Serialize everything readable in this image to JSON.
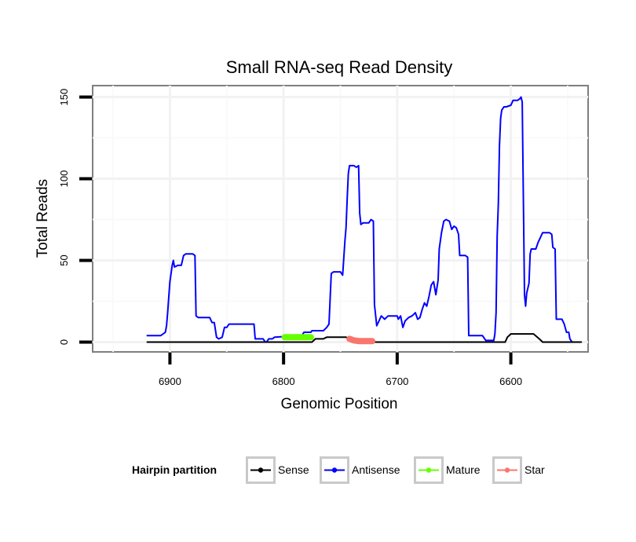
{
  "chart_data": {
    "type": "line",
    "title": "Small RNA-seq Read Density",
    "xlabel": "Genomic Position",
    "ylabel": "Total Reads",
    "xlim": [
      6532,
      6968
    ],
    "x_reversed": true,
    "ylim": [
      -6,
      157
    ],
    "x_ticks": [
      6900,
      6800,
      6700,
      6600
    ],
    "y_ticks": [
      0,
      50,
      100,
      150
    ],
    "grid": true,
    "legend": {
      "title": "Hairpin partition",
      "position": "bottom",
      "entries": [
        "Sense",
        "Antisense",
        "Mature",
        "Star"
      ]
    },
    "series": [
      {
        "name": "Antisense",
        "color": "#0000FF",
        "width": 2,
        "points": [
          [
            6920,
            4
          ],
          [
            6908,
            4
          ],
          [
            6904,
            6
          ],
          [
            6903,
            10
          ],
          [
            6902,
            18
          ],
          [
            6901,
            28
          ],
          [
            6900,
            37
          ],
          [
            6898,
            47
          ],
          [
            6897,
            50
          ],
          [
            6896,
            46
          ],
          [
            6893,
            47
          ],
          [
            6890,
            47
          ],
          [
            6888,
            53
          ],
          [
            6886,
            54
          ],
          [
            6880,
            54
          ],
          [
            6878,
            53
          ],
          [
            6877,
            16
          ],
          [
            6875,
            15
          ],
          [
            6865,
            15
          ],
          [
            6863,
            12
          ],
          [
            6861,
            12
          ],
          [
            6859,
            3
          ],
          [
            6857,
            2
          ],
          [
            6854,
            3
          ],
          [
            6852,
            9
          ],
          [
            6850,
            9
          ],
          [
            6848,
            11
          ],
          [
            6842,
            11
          ],
          [
            6835,
            11
          ],
          [
            6826,
            11
          ],
          [
            6825,
            2
          ],
          [
            6818,
            2
          ],
          [
            6816,
            0
          ],
          [
            6815,
            0
          ],
          [
            6813,
            2
          ],
          [
            6810,
            2
          ],
          [
            6808,
            3
          ],
          [
            6785,
            4
          ],
          [
            6784,
            4
          ],
          [
            6782,
            6
          ],
          [
            6776,
            6
          ],
          [
            6775,
            7
          ],
          [
            6765,
            7
          ],
          [
            6762,
            9
          ],
          [
            6760,
            11
          ],
          [
            6758,
            42
          ],
          [
            6756,
            43
          ],
          [
            6750,
            43
          ],
          [
            6748,
            41
          ],
          [
            6746,
            62
          ],
          [
            6745,
            70
          ],
          [
            6744,
            88
          ],
          [
            6743,
            103
          ],
          [
            6742,
            108
          ],
          [
            6738,
            108
          ],
          [
            6736,
            107
          ],
          [
            6734,
            108
          ],
          [
            6733,
            79
          ],
          [
            6732,
            72
          ],
          [
            6730,
            73
          ],
          [
            6725,
            73
          ],
          [
            6723,
            75
          ],
          [
            6721,
            74
          ],
          [
            6720,
            23
          ],
          [
            6718,
            10
          ],
          [
            6716,
            13
          ],
          [
            6714,
            16
          ],
          [
            6711,
            14
          ],
          [
            6708,
            16
          ],
          [
            6705,
            16
          ],
          [
            6700,
            16
          ],
          [
            6699,
            14
          ],
          [
            6697,
            16
          ],
          [
            6695,
            9
          ],
          [
            6693,
            13
          ],
          [
            6690,
            15
          ],
          [
            6687,
            16
          ],
          [
            6684,
            18
          ],
          [
            6682,
            14
          ],
          [
            6680,
            15
          ],
          [
            6678,
            20
          ],
          [
            6676,
            24
          ],
          [
            6674,
            22
          ],
          [
            6672,
            28
          ],
          [
            6670,
            35
          ],
          [
            6668,
            37
          ],
          [
            6666,
            29
          ],
          [
            6664,
            38
          ],
          [
            6663,
            57
          ],
          [
            6661,
            67
          ],
          [
            6659,
            74
          ],
          [
            6657,
            75
          ],
          [
            6654,
            74
          ],
          [
            6652,
            69
          ],
          [
            6650,
            71
          ],
          [
            6648,
            70
          ],
          [
            6646,
            66
          ],
          [
            6645,
            53
          ],
          [
            6640,
            53
          ],
          [
            6638,
            52
          ],
          [
            6637,
            4
          ],
          [
            6625,
            4
          ],
          [
            6622,
            1
          ],
          [
            6618,
            1
          ],
          [
            6615,
            1
          ],
          [
            6614,
            5
          ],
          [
            6613,
            18
          ],
          [
            6612,
            65
          ],
          [
            6611,
            85
          ],
          [
            6610,
            120
          ],
          [
            6609,
            137
          ],
          [
            6608,
            142
          ],
          [
            6606,
            144
          ],
          [
            6604,
            144
          ],
          [
            6600,
            145
          ],
          [
            6598,
            148
          ],
          [
            6594,
            148
          ],
          [
            6592,
            149
          ],
          [
            6591,
            150
          ],
          [
            6590,
            147
          ],
          [
            6588,
            29
          ],
          [
            6587,
            22
          ],
          [
            6586,
            30
          ],
          [
            6584,
            36
          ],
          [
            6583,
            54
          ],
          [
            6582,
            57
          ],
          [
            6578,
            57
          ],
          [
            6576,
            61
          ],
          [
            6574,
            64
          ],
          [
            6572,
            67
          ],
          [
            6566,
            67
          ],
          [
            6564,
            66
          ],
          [
            6563,
            58
          ],
          [
            6561,
            57
          ],
          [
            6560,
            14
          ],
          [
            6555,
            14
          ],
          [
            6553,
            11
          ],
          [
            6551,
            6
          ],
          [
            6549,
            6
          ],
          [
            6548,
            2
          ],
          [
            6546,
            0
          ]
        ]
      },
      {
        "name": "Sense",
        "color": "#000000",
        "width": 2,
        "points": [
          [
            6920,
            0
          ],
          [
            6775,
            0
          ],
          [
            6772,
            2
          ],
          [
            6765,
            2
          ],
          [
            6762,
            3
          ],
          [
            6752,
            3
          ],
          [
            6745,
            3
          ],
          [
            6742,
            2
          ],
          [
            6740,
            1
          ],
          [
            6737,
            1
          ],
          [
            6735,
            0
          ],
          [
            6605,
            0
          ],
          [
            6603,
            3
          ],
          [
            6600,
            5
          ],
          [
            6585,
            5
          ],
          [
            6580,
            5
          ],
          [
            6575,
            2
          ],
          [
            6572,
            0
          ],
          [
            6538,
            0
          ]
        ]
      },
      {
        "name": "Mature",
        "color": "#66FF00",
        "width": 8,
        "points": [
          [
            6799,
            3
          ],
          [
            6776,
            3
          ]
        ]
      },
      {
        "name": "Star",
        "color": "#F8766D",
        "width": 8,
        "points": [
          [
            6742,
            2
          ],
          [
            6738,
            1
          ],
          [
            6733,
            0.6
          ],
          [
            6722,
            0.6
          ]
        ]
      }
    ]
  }
}
